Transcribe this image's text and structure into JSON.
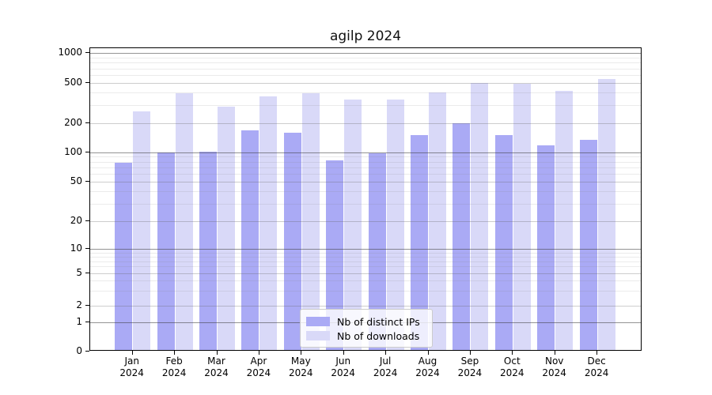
{
  "chart_data": {
    "type": "bar",
    "title": "agilp 2024",
    "categories": [
      "Jan",
      "Feb",
      "Mar",
      "Apr",
      "May",
      "Jun",
      "Jul",
      "Aug",
      "Sep",
      "Oct",
      "Nov",
      "Dec"
    ],
    "category_year_label": "2024",
    "series": [
      {
        "name": "Nb of distinct IPs",
        "color": "#aaaaf5",
        "values": [
          75,
          95,
          97,
          160,
          152,
          79,
          94,
          143,
          190,
          145,
          114,
          130
        ]
      },
      {
        "name": "Nb of downloads",
        "color": "#d9d9f8",
        "values": [
          250,
          380,
          280,
          352,
          378,
          328,
          330,
          390,
          485,
          470,
          405,
          530
        ]
      }
    ],
    "y_axis": {
      "scale": "log-like (0,1,2,5 sequence)",
      "ticks": [
        0,
        1,
        2,
        5,
        10,
        20,
        50,
        100,
        200,
        500,
        1000
      ],
      "minor_ticks": [
        3,
        4,
        6,
        7,
        8,
        9,
        30,
        40,
        60,
        70,
        80,
        90,
        300,
        400,
        600,
        700,
        800,
        900
      ],
      "ylim": [
        0,
        1000
      ]
    },
    "legend": {
      "position": "bottom-center",
      "entries": [
        "Nb of distinct IPs",
        "Nb of downloads"
      ]
    },
    "grid": "on"
  }
}
